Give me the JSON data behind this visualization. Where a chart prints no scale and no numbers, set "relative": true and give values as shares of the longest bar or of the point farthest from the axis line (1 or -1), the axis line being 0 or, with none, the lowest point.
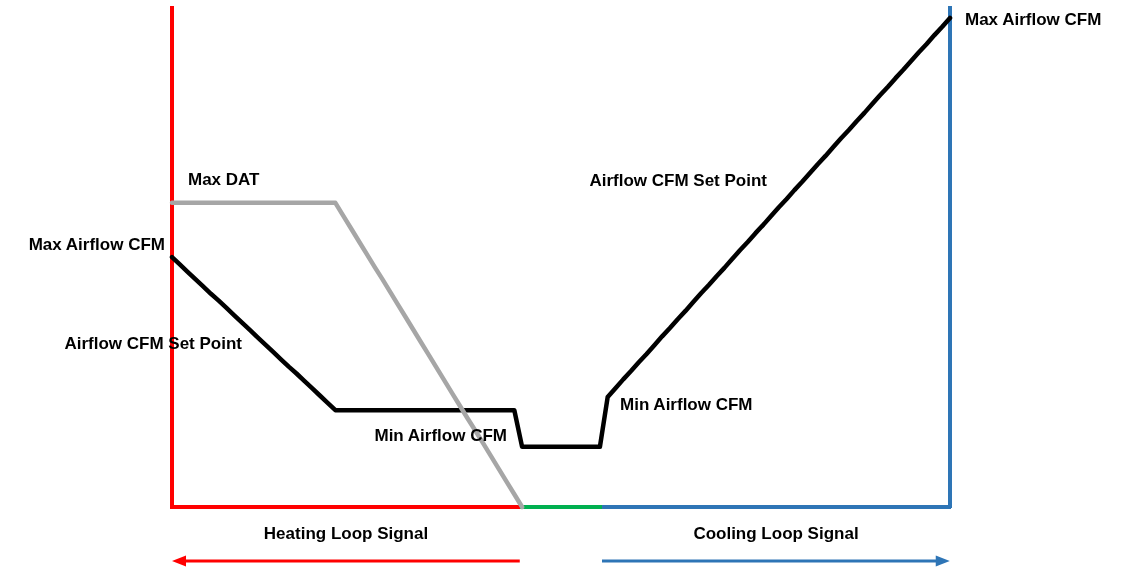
{
  "chart_data": {
    "type": "line",
    "relative": true,
    "categories": [
      null,
      null,
      null,
      null,
      null,
      null,
      null,
      null,
      null,
      null,
      null,
      null,
      null,
      null,
      null,
      null,
      null,
      null,
      null,
      null,
      null,
      null,
      null,
      null,
      null,
      null,
      null,
      null,
      null,
      null,
      null,
      null,
      null,
      null,
      null,
      null,
      null,
      null,
      null,
      null,
      null,
      null,
      null,
      null,
      null,
      null,
      null,
      null,
      null,
      null,
      null,
      null,
      null,
      null,
      null,
      null,
      null,
      null,
      null,
      null,
      null,
      null,
      null,
      null,
      null,
      null,
      null,
      null,
      null,
      null,
      null,
      null,
      null,
      null,
      null,
      null,
      null,
      null,
      null,
      null,
      null,
      null,
      null,
      null,
      null,
      null,
      null,
      null,
      null,
      null,
      null,
      null,
      null,
      null,
      null,
      null,
      null,
      null,
      null,
      null,
      null
    ],
    "series": [
      {
        "color": "#000000",
        "values": [
          0.511,
          0.496,
          0.481,
          0.466,
          0.451,
          0.436,
          0.422,
          0.407,
          0.392,
          0.377,
          0.362,
          0.347,
          0.332,
          0.317,
          0.302,
          0.287,
          0.273,
          0.258,
          0.243,
          0.228,
          0.213,
          0.198,
          0.198,
          0.198,
          0.198,
          0.198,
          0.198,
          0.198,
          0.198,
          0.198,
          0.198,
          0.198,
          0.198,
          0.198,
          0.198,
          0.198,
          0.198,
          0.198,
          0.198,
          0.198,
          0.198,
          0.198,
          0.198,
          0.198,
          0.198,
          0.123,
          0.123,
          0.123,
          0.123,
          0.123,
          0.123,
          0.123,
          0.123,
          0.123,
          0.123,
          0.123,
          0.225,
          0.243,
          0.261,
          0.278,
          0.296,
          0.313,
          0.331,
          0.349,
          0.366,
          0.384,
          0.401,
          0.419,
          0.437,
          0.454,
          0.472,
          0.489,
          0.507,
          0.525,
          0.542,
          0.56,
          0.577,
          0.595,
          0.613,
          0.63,
          0.648,
          0.665,
          0.683,
          0.701,
          0.718,
          0.736,
          0.754,
          0.771,
          0.789,
          0.806,
          0.824,
          0.842,
          0.859,
          0.877,
          0.894,
          0.912,
          0.93,
          0.947,
          0.965,
          0.982,
          1.0
        ]
      },
      {
        "color": "#a6a6a6",
        "values": [
          0.622,
          0.622,
          0.622,
          0.622,
          0.622,
          0.622,
          0.622,
          0.622,
          0.622,
          0.622,
          0.622,
          0.622,
          0.622,
          0.622,
          0.622,
          0.622,
          0.622,
          0.622,
          0.622,
          0.622,
          0.622,
          0.622,
          0.596,
          0.57,
          0.544,
          0.518,
          0.492,
          0.467,
          0.441,
          0.415,
          0.389,
          0.363,
          0.337,
          0.311,
          0.285,
          0.259,
          0.233,
          0.207,
          0.181,
          0.156,
          0.13,
          0.104,
          0.078,
          0.052,
          0.026,
          0,
          null,
          null,
          null,
          null,
          null,
          null,
          null,
          null,
          null,
          null,
          null,
          null,
          null,
          null,
          null,
          null,
          null,
          null,
          null,
          null,
          null,
          null,
          null,
          null,
          null,
          null,
          null,
          null,
          null,
          null,
          null,
          null,
          null,
          null,
          null,
          null,
          null,
          null,
          null,
          null,
          null,
          null,
          null,
          null,
          null,
          null,
          null,
          null,
          null,
          null,
          null,
          null,
          null,
          null,
          null
        ]
      }
    ],
    "marker": "none",
    "line_style": "solid",
    "legend": false,
    "grid": false,
    "annotations": [
      "Max DAT",
      "Max Airflow CFM",
      "Airflow CFM Set Point",
      "Min Airflow CFM",
      "Min Airflow CFM",
      "Airflow CFM Set Point",
      "Max Airflow CFM",
      "Heating Loop Signal",
      "Cooling Loop Signal"
    ]
  }
}
